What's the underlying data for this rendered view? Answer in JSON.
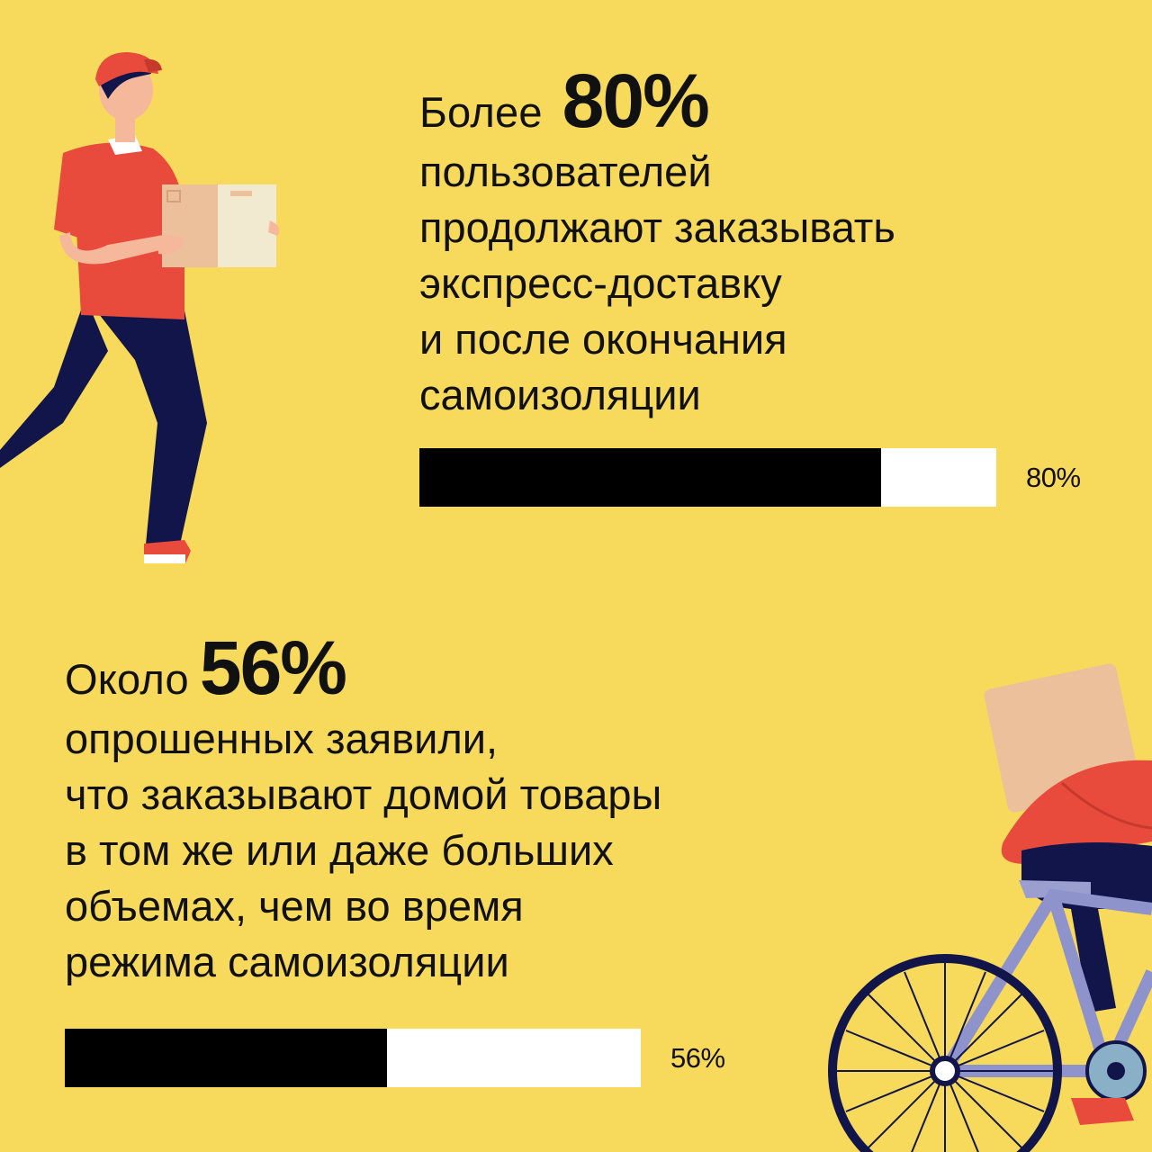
{
  "stat1": {
    "prefix": "Более",
    "number": "80%",
    "lines": [
      "пользователей",
      "продолжают заказывать",
      "экспресс-доставку",
      "и после окончания",
      "самоизоляции"
    ],
    "progress_value": 80,
    "progress_label": "80%"
  },
  "stat2": {
    "prefix": "Около",
    "number": "56%",
    "lines": [
      "опрошенных заявили,",
      "что заказывают домой товары",
      "в том же или даже больших",
      "объемах, чем во время",
      "режима самоизоляции"
    ],
    "progress_value": 56,
    "progress_label": "56%"
  },
  "colors": {
    "background": "#f7d95c",
    "bar_fill": "#000000",
    "bar_track": "#ffffff",
    "courier_shirt": "#e84a3c",
    "courier_pants": "#12154a"
  },
  "illustrations": {
    "top": "courier-with-box-icon",
    "bottom": "bicycle-courier-icon"
  }
}
